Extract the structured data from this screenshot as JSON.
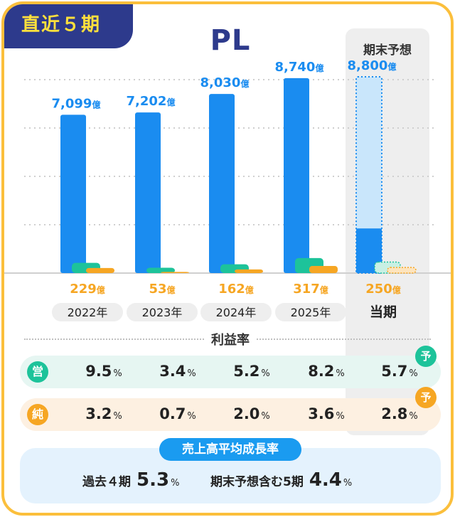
{
  "badge": "直近５期",
  "title": "PL",
  "forecast_header": "期末予想",
  "chart_data": {
    "type": "bar",
    "categories": [
      "2022年",
      "2023年",
      "2024年",
      "2025年",
      "当期"
    ],
    "series": [
      {
        "name": "",
        "values": [
          7099,
          7202,
          8030,
          8740,
          8800
        ],
        "color": "#1a8cf0"
      },
      {
        "name": "",
        "values": [
          458,
          238,
          394,
          674,
          495
        ],
        "color": "#1dc39a"
      },
      {
        "name": "",
        "values": [
          229,
          53,
          162,
          317,
          250
        ],
        "color": "#f6a623"
      }
    ],
    "sales_labels": [
      "7,099",
      "7,202",
      "8,030",
      "8,740",
      "8,800"
    ],
    "net_labels": [
      "229",
      "53",
      "162",
      "317",
      "250"
    ],
    "unit": "億",
    "forecast_current_sales": 2000,
    "ylim": [
      0,
      9500
    ],
    "grid": true,
    "forecast_index": 4
  },
  "profit_rate": {
    "title": "利益率",
    "op": {
      "icon": "営",
      "values": [
        "9.5",
        "3.4",
        "5.2",
        "8.2",
        "5.7"
      ]
    },
    "net": {
      "icon": "純",
      "values": [
        "3.2",
        "0.7",
        "2.0",
        "3.6",
        "2.8"
      ]
    },
    "unit": "%",
    "forecast_mark": "予"
  },
  "growth": {
    "title": "売上高平均成長率",
    "past_label": "過去４期",
    "past_value": "5.3",
    "fc_label": "期末予想含む5期",
    "fc_value": "4.4",
    "unit": "%"
  }
}
